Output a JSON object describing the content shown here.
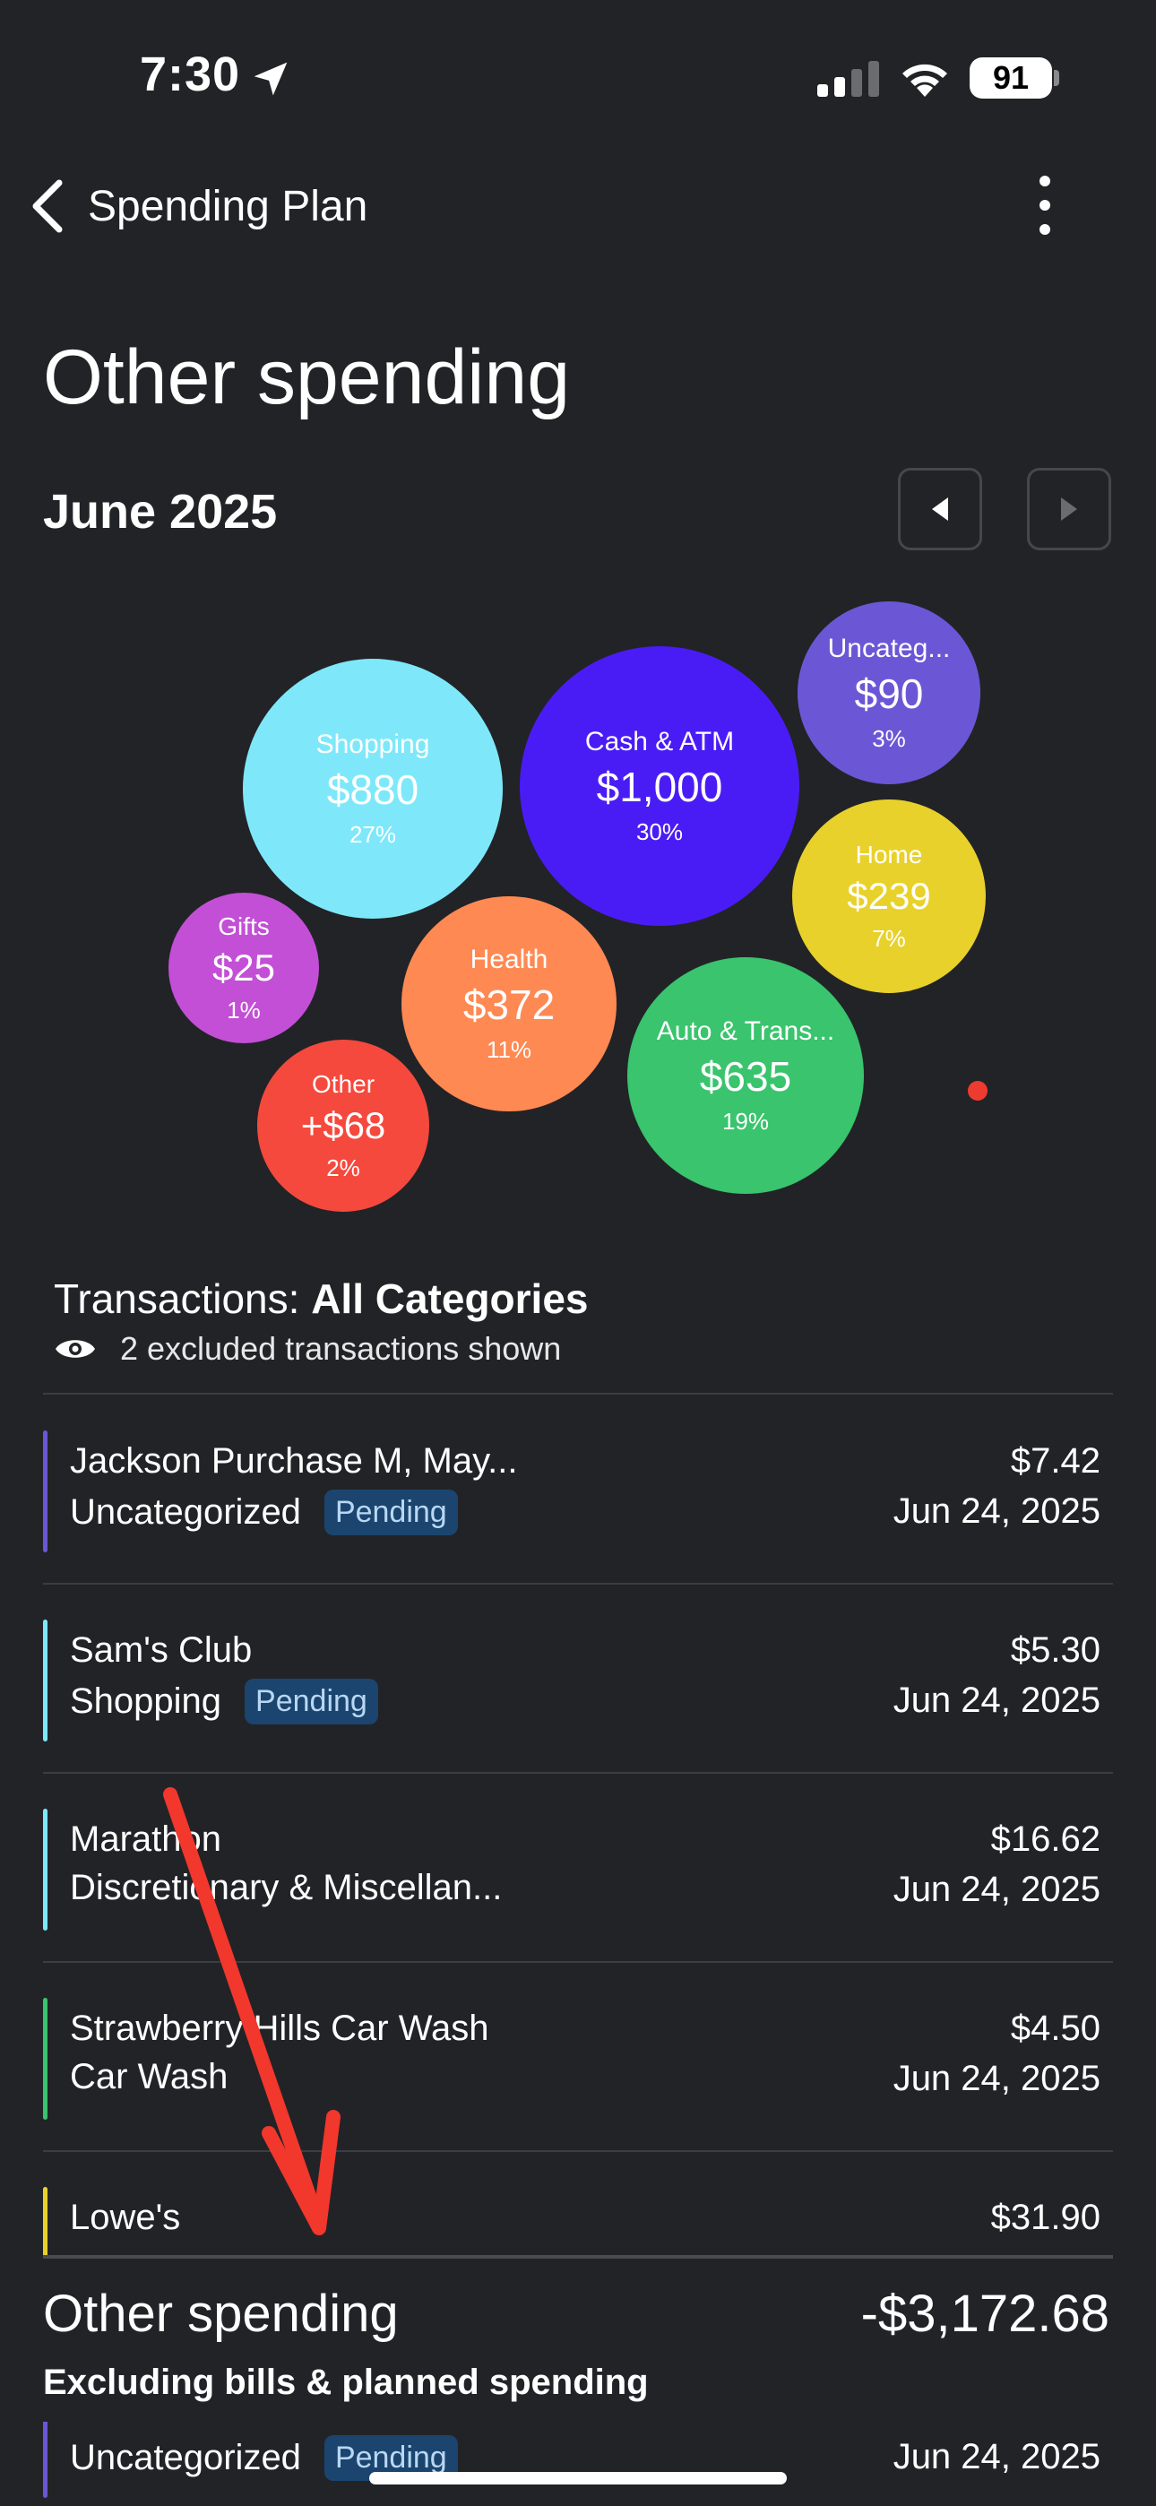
{
  "status_bar": {
    "time": "7:30",
    "battery": "91",
    "location_icon": "location-arrow-icon",
    "signal_icon": "cell-signal-icon",
    "wifi_icon": "wifi-icon"
  },
  "header": {
    "back_label": "Spending Plan",
    "back_icon": "chevron-left-icon",
    "menu_icon": "more-vertical-icon",
    "title": "Other spending"
  },
  "period": {
    "month": "June 2025",
    "prev_icon": "triangle-left-icon",
    "next_icon": "triangle-right-icon"
  },
  "bubbles": [
    {
      "name": "Shopping",
      "amount": "$880",
      "pct": "27%",
      "color": "#7ee8fa",
      "value": 880
    },
    {
      "name": "Cash & ATM",
      "amount": "$1,000",
      "pct": "30%",
      "color": "#4a1cf5",
      "value": 1000
    },
    {
      "name": "Uncateg...",
      "amount": "$90",
      "pct": "3%",
      "color": "#6b57d6",
      "value": 90
    },
    {
      "name": "Home",
      "amount": "$239",
      "pct": "7%",
      "color": "#e8d12a",
      "value": 239
    },
    {
      "name": "Gifts",
      "amount": "$25",
      "pct": "1%",
      "color": "#c24fd6",
      "value": 25
    },
    {
      "name": "Health",
      "amount": "$372",
      "pct": "11%",
      "color": "#ff8952",
      "value": 372
    },
    {
      "name": "Auto & Trans...",
      "amount": "$635",
      "pct": "19%",
      "color": "#39c46d",
      "value": 635
    },
    {
      "name": "Other",
      "amount": "+$68",
      "pct": "2%",
      "color": "#f5493d",
      "value": 68
    }
  ],
  "transactions_header": {
    "prefix": "Transactions: ",
    "filter": "All Categories",
    "excluded_text": "2 excluded transactions shown",
    "eye_icon": "eye-icon"
  },
  "transactions": [
    {
      "name": "Jackson Purchase M, May...",
      "category": "Uncategorized",
      "pending": "Pending",
      "amount": "$7.42",
      "date": "Jun 24, 2025",
      "color": "#6b57d6"
    },
    {
      "name": "Sam's Club",
      "category": "Shopping",
      "pending": "Pending",
      "amount": "$5.30",
      "date": "Jun 24, 2025",
      "color": "#7ee8fa"
    },
    {
      "name": "Marathon",
      "category": "Discretionary & Miscellan...",
      "pending": "",
      "amount": "$16.62",
      "date": "Jun 24, 2025",
      "color": "#7ee8fa"
    },
    {
      "name": "Strawberry Hills Car Wash",
      "category": "Car Wash",
      "pending": "",
      "amount": "$4.50",
      "date": "Jun 24, 2025",
      "color": "#39c46d"
    },
    {
      "name": "Lowe's",
      "category": "",
      "pending": "",
      "amount": "$31.90",
      "date": "",
      "color": "#e8d12a"
    },
    {
      "name": "",
      "category": "Uncategorized",
      "pending": "Pending",
      "amount": "",
      "date": "Jun 24, 2025",
      "color": "#6b57d6"
    }
  ],
  "summary": {
    "title": "Other spending",
    "total": "-$3,172.68",
    "subtitle": "Excluding bills & planned spending"
  },
  "annotation": {
    "arrow_color": "#f2372c"
  }
}
